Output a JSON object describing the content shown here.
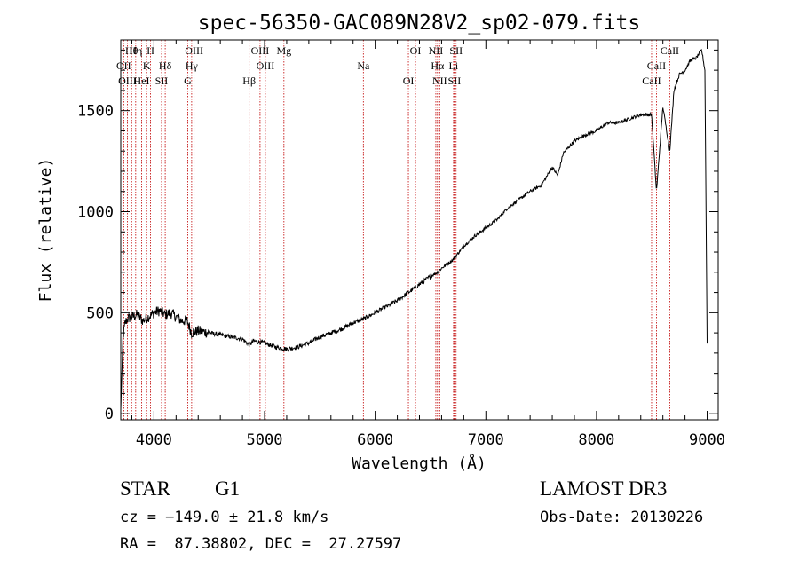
{
  "chart_data": {
    "type": "line",
    "title": "spec-56350-GAC089N28V2_sp02-079.fits",
    "xlabel": "Wavelength (Å)",
    "ylabel": "Flux (relative)",
    "xlim": [
      3700,
      9100
    ],
    "ylim": [
      -30,
      1850
    ],
    "xticks": [
      4000,
      5000,
      6000,
      7000,
      8000,
      9000
    ],
    "yticks": [
      0,
      500,
      1000,
      1500
    ],
    "series": [
      {
        "name": "spectrum",
        "x": [
          3700,
          3720,
          3740,
          3760,
          3800,
          3850,
          3900,
          3950,
          4000,
          4050,
          4100,
          4150,
          4200,
          4250,
          4300,
          4340,
          4400,
          4500,
          4600,
          4700,
          4800,
          4861,
          4900,
          5000,
          5100,
          5200,
          5300,
          5400,
          5500,
          5600,
          5700,
          5800,
          5900,
          6000,
          6100,
          6200,
          6300,
          6400,
          6500,
          6563,
          6600,
          6700,
          6800,
          6900,
          7000,
          7100,
          7200,
          7300,
          7400,
          7500,
          7600,
          7650,
          7700,
          7800,
          7900,
          8000,
          8100,
          8200,
          8300,
          8400,
          8498,
          8542,
          8600,
          8662,
          8700,
          8750,
          8800,
          8850,
          8900,
          8950,
          8980,
          9000
        ],
        "y": [
          20,
          380,
          450,
          470,
          480,
          490,
          460,
          480,
          500,
          510,
          490,
          500,
          480,
          460,
          460,
          400,
          410,
          400,
          390,
          380,
          370,
          340,
          360,
          350,
          330,
          320,
          330,
          350,
          380,
          400,
          420,
          450,
          470,
          500,
          530,
          560,
          600,
          640,
          680,
          700,
          720,
          760,
          830,
          880,
          920,
          960,
          1020,
          1060,
          1100,
          1130,
          1220,
          1180,
          1290,
          1350,
          1380,
          1400,
          1440,
          1440,
          1460,
          1480,
          1480,
          1100,
          1520,
          1300,
          1600,
          1680,
          1700,
          1750,
          1760,
          1800,
          1700,
          350
        ]
      }
    ],
    "line_marks": [
      {
        "label": "Hθ",
        "x": 3798
      },
      {
        "label": "OII",
        "x": 3727
      },
      {
        "label": "OIII",
        "x": 3760
      },
      {
        "label": "Hη",
        "x": 3835
      },
      {
        "label": "K",
        "x": 3934
      },
      {
        "label": "HeI",
        "x": 3889
      },
      {
        "label": "H",
        "x": 3969
      },
      {
        "label": "Hδ",
        "x": 4102
      },
      {
        "label": "SII",
        "x": 4069
      },
      {
        "label": "OIII",
        "x": 4363
      },
      {
        "label": "Hγ",
        "x": 4341
      },
      {
        "label": "G",
        "x": 4305
      },
      {
        "label": "OIII",
        "x": 4959
      },
      {
        "label": "OIII",
        "x": 5007
      },
      {
        "label": "Hβ",
        "x": 4861
      },
      {
        "label": "Mg",
        "x": 5175
      },
      {
        "label": "Na",
        "x": 5893
      },
      {
        "label": "OI",
        "x": 6300
      },
      {
        "label": "OI",
        "x": 6364
      },
      {
        "label": "Hα",
        "x": 6563
      },
      {
        "label": "SII",
        "x": 6716
      },
      {
        "label": "NII",
        "x": 6548
      },
      {
        "label": "Li",
        "x": 6708
      },
      {
        "label": "NII",
        "x": 6583
      },
      {
        "label": "SII",
        "x": 6731
      },
      {
        "label": "CaII",
        "x": 8542
      },
      {
        "label": "CaII",
        "x": 8498
      },
      {
        "label": "CaII",
        "x": 8662
      }
    ]
  },
  "info": {
    "object_class": "STAR",
    "subclass": "G1",
    "survey": "LAMOST DR3",
    "cz": "cz = −149.0 ± 21.8 km/s",
    "obs_date": "Obs-Date: 20130226",
    "coords": "RA =  87.38802, DEC =  27.27597"
  },
  "colors": {
    "line": "#000000",
    "mark": "#c00000"
  }
}
